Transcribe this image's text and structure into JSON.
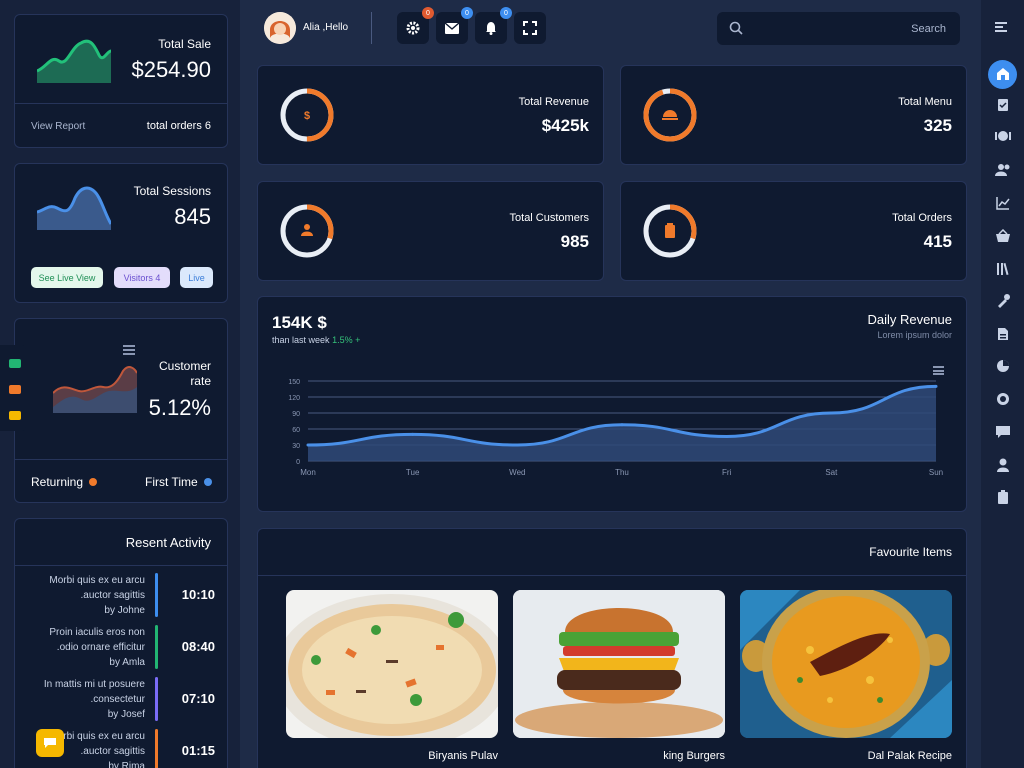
{
  "sale_card": {
    "label": "Total Sale",
    "value": "$254.90",
    "link": "View Report",
    "orders": "total orders 6"
  },
  "sessions_card": {
    "label": "Total Sessions",
    "value": "845",
    "buttons": [
      "See Live View",
      "Visitors 4",
      "Live"
    ]
  },
  "customer_rate_card": {
    "label_line1": "Customer",
    "label_line2": "rate",
    "value": "5.12%",
    "legend": [
      "Returning",
      "First Time"
    ]
  },
  "activity": {
    "title": "Resent Activity",
    "items": [
      {
        "line1": "Morbi quis ex eu arcu",
        "line2": ".auctor sagittis",
        "line3": "by Johne",
        "time": "10:10",
        "color": "#3d8ef0"
      },
      {
        "line1": "Proin iaculis eros non",
        "line2": ".odio ornare efficitur",
        "line3": "by Amla",
        "time": "08:40",
        "color": "#22b573"
      },
      {
        "line1": "In mattis mi ut posuere",
        "line2": ".consectetur",
        "line3": "by Josef",
        "time": "07:10",
        "color": "#7b6cf6"
      },
      {
        "line1": "Morbi quis ex eu arcu",
        "line2": ".auctor sagittis",
        "line3": "by Rima",
        "time": "01:15",
        "color": "#f07a2b"
      }
    ]
  },
  "header": {
    "greeting": "Alia ,Hello",
    "badges": [
      "0",
      "0",
      "0"
    ],
    "search_placeholder": "Search"
  },
  "stats": [
    {
      "label": "Total Revenue",
      "value": "$425k",
      "ring_fraction": 0.5
    },
    {
      "label": "Total Menu",
      "value": "325",
      "ring_fraction": 0.95
    },
    {
      "label": "Total Customers",
      "value": "985",
      "ring_fraction": 0.3
    },
    {
      "label": "Total Orders",
      "value": "415",
      "ring_fraction": 0.3
    }
  ],
  "revenue": {
    "big": "154K $",
    "sub": "than last week",
    "change": "1.5% +",
    "title": "Daily Revenue",
    "desc": "Lorem ipsum dolor"
  },
  "chart_data": {
    "type": "area",
    "categories": [
      "Mon",
      "Tue",
      "Wed",
      "Thu",
      "Fri",
      "Sat",
      "Sun"
    ],
    "values": [
      30,
      50,
      30,
      68,
      46,
      90,
      140
    ],
    "yticks": [
      0,
      30,
      60,
      90,
      120,
      150
    ],
    "ylim": [
      0,
      150
    ],
    "title": "Daily Revenue",
    "grid": true
  },
  "favourites": {
    "title": "Favourite Items",
    "items": [
      "Biryanis Pulav",
      "king Burgers",
      "Dal Palak Recipe"
    ]
  },
  "colors": {
    "accent": "#3d8ef0",
    "orange": "#f07a2b",
    "card": "#0f1a30"
  }
}
